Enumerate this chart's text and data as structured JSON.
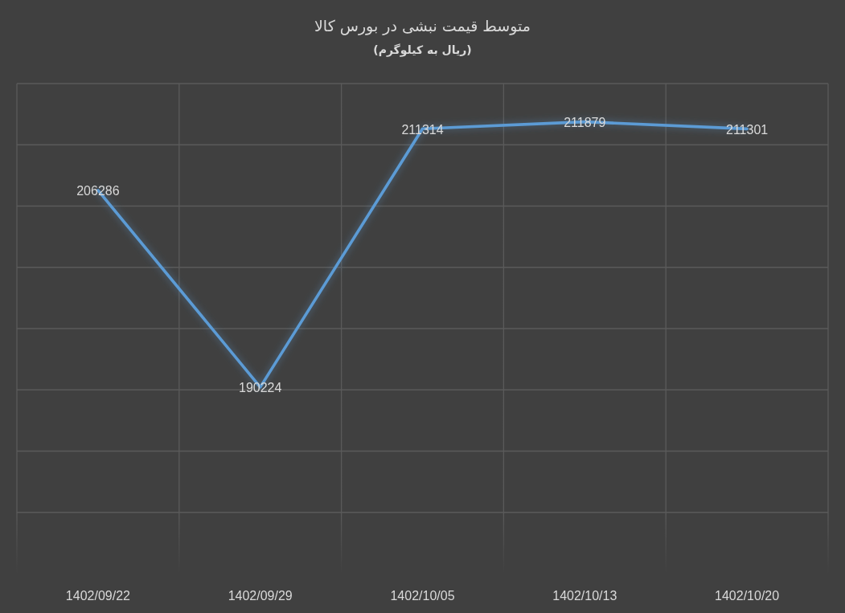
{
  "chart_data": {
    "type": "line",
    "title": "متوسط قیمت نبشی در بورس کالا",
    "subtitle": "(ریال به کیلوگرم)",
    "categories": [
      "1402/09/22",
      "1402/09/29",
      "1402/10/05",
      "1402/10/13",
      "1402/10/20"
    ],
    "series": [
      {
        "color": "#5b9bd5",
        "values": [
          206286,
          190224,
          211314,
          211879,
          211301
        ]
      }
    ],
    "ylim": [
      175000,
      215000
    ],
    "yticks": [
      {
        "value": 180000,
        "label": null
      },
      {
        "value": 185000,
        "label": null
      },
      {
        "value": 190000,
        "label": null
      },
      {
        "value": 195000,
        "label": null
      },
      {
        "value": 200000,
        "label": null
      },
      {
        "value": 205000,
        "label": null
      },
      {
        "value": 210000,
        "label": null
      },
      {
        "value": 215000,
        "label": null
      }
    ],
    "tick_labels": "x",
    "grid": true,
    "data_labels": true
  }
}
